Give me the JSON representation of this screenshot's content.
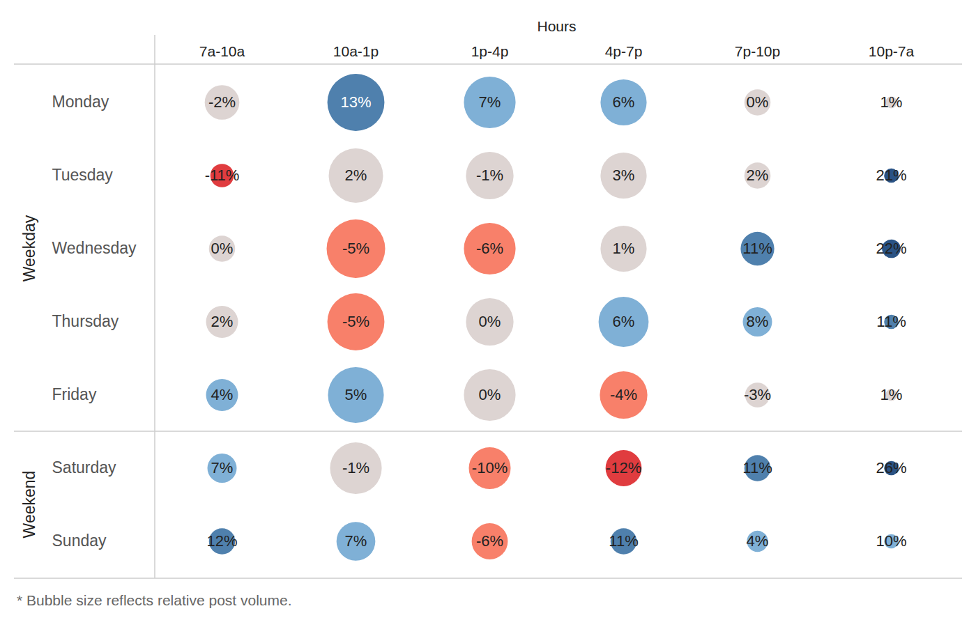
{
  "chart_data": {
    "type": "bubble",
    "xlabel": "Hours",
    "x": [
      "7a-10a",
      "10a-1p",
      "1p-4p",
      "4p-7p",
      "7p-10p",
      "10p-7a"
    ],
    "y": [
      "Monday",
      "Tuesday",
      "Wednesday",
      "Thursday",
      "Friday",
      "Saturday",
      "Sunday"
    ],
    "groups": [
      {
        "label": "Weekday",
        "categories": [
          "Monday",
          "Tuesday",
          "Wednesday",
          "Thursday",
          "Friday"
        ]
      },
      {
        "label": "Weekend",
        "categories": [
          "Saturday",
          "Sunday"
        ]
      }
    ],
    "values": [
      [
        -2,
        13,
        7,
        6,
        0,
        1
      ],
      [
        -11,
        2,
        -1,
        3,
        2,
        21
      ],
      [
        0,
        -5,
        -6,
        1,
        11,
        22
      ],
      [
        2,
        -5,
        0,
        6,
        8,
        11
      ],
      [
        4,
        5,
        0,
        -4,
        -3,
        1
      ],
      [
        7,
        -1,
        -10,
        -12,
        11,
        26
      ],
      [
        12,
        7,
        -6,
        11,
        4,
        10
      ]
    ],
    "value_labels": [
      [
        "-2%",
        "13%",
        "7%",
        "6%",
        "0%",
        "1%"
      ],
      [
        "-11%",
        "2%",
        "-1%",
        "3%",
        "2%",
        "21%"
      ],
      [
        "0%",
        "-5%",
        "-6%",
        "1%",
        "11%",
        "22%"
      ],
      [
        "2%",
        "-5%",
        "0%",
        "6%",
        "8%",
        "11%"
      ],
      [
        "4%",
        "5%",
        "0%",
        "-4%",
        "-3%",
        "1%"
      ],
      [
        "7%",
        "-1%",
        "-10%",
        "-12%",
        "11%",
        "26%"
      ],
      [
        "12%",
        "7%",
        "-6%",
        "11%",
        "4%",
        "10%"
      ]
    ],
    "sizes": [
      [
        35,
        95,
        78,
        62,
        20,
        4
      ],
      [
        16,
        86,
        66,
        62,
        20,
        6
      ],
      [
        20,
        100,
        78,
        62,
        33,
        10
      ],
      [
        30,
        95,
        66,
        73,
        25,
        6
      ],
      [
        30,
        91,
        78,
        66,
        18,
        4
      ],
      [
        25,
        78,
        51,
        38,
        20,
        6
      ],
      [
        20,
        44,
        38,
        20,
        13,
        6
      ]
    ],
    "colors": [
      [
        "#ddd4d2",
        "#4f80ad",
        "#7fb0d6",
        "#7fb0d6",
        "#ddd4d2",
        "#ddd4d2"
      ],
      [
        "#e03c3f",
        "#ddd4d2",
        "#ddd4d2",
        "#ddd4d2",
        "#ddd4d2",
        "#2a5385"
      ],
      [
        "#ddd4d2",
        "#f8806a",
        "#f8806a",
        "#ddd4d2",
        "#4f80ad",
        "#2a5385"
      ],
      [
        "#ddd4d2",
        "#f8806a",
        "#ddd4d2",
        "#7fb0d6",
        "#7fb0d6",
        "#4f80ad"
      ],
      [
        "#7fb0d6",
        "#7fb0d6",
        "#ddd4d2",
        "#f8806a",
        "#ddd4d2",
        "#ddd4d2"
      ],
      [
        "#7fb0d6",
        "#ddd4d2",
        "#f8806a",
        "#e03c3f",
        "#4f80ad",
        "#2a5385"
      ],
      [
        "#4f80ad",
        "#7fb0d6",
        "#f8806a",
        "#4f80ad",
        "#7fb0d6",
        "#7fb0d6"
      ]
    ],
    "data_labels": true,
    "caption": "* Bubble size reflects relative post volume."
  }
}
